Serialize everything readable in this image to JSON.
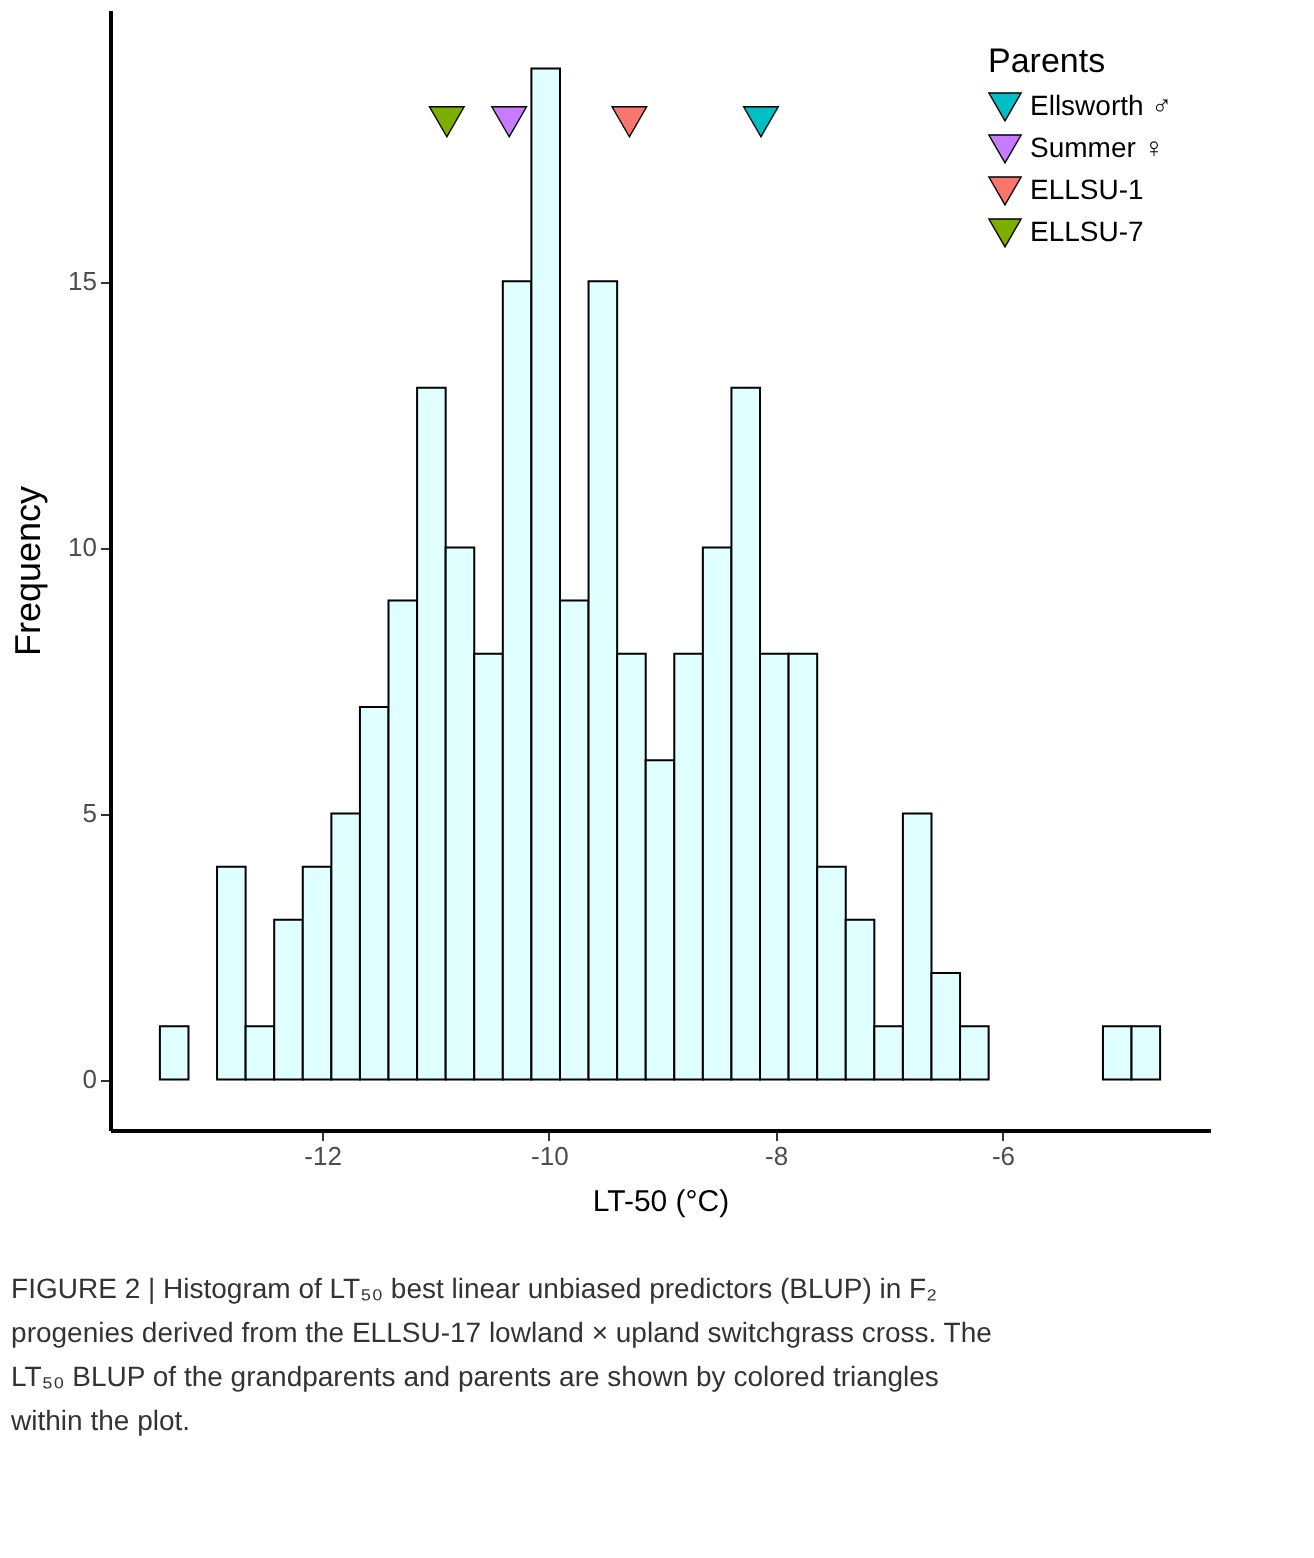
{
  "chart_data": {
    "type": "histogram",
    "xlabel": "LT-50 (°C)",
    "ylabel": "Frequency",
    "legend_title": "Parents",
    "legend": "top right",
    "grid": false,
    "marker": "triangle",
    "color": "#e0ffff",
    "bins": [
      -13.43,
      -13.178,
      -12.926,
      -12.674,
      -12.422,
      -12.17,
      -11.918,
      -11.666,
      -11.414,
      -11.162,
      -10.91,
      -10.658,
      -10.406,
      -10.154,
      -9.902,
      -9.65,
      -9.398,
      -9.146,
      -8.894,
      -8.642,
      -8.39,
      -8.138,
      -7.886,
      -7.634,
      -7.382,
      -7.13,
      -6.878,
      -6.626,
      -6.374,
      -6.122,
      -5.87,
      -5.618,
      -5.366,
      -5.114,
      -4.862,
      -4.61
    ],
    "values": [
      1,
      0,
      4,
      1,
      3,
      4,
      5,
      7,
      9,
      13,
      10,
      8,
      15,
      19,
      9,
      15,
      8,
      6,
      8,
      10,
      13,
      8,
      8,
      4,
      3,
      1,
      5,
      2,
      1,
      0,
      0,
      0,
      0,
      1,
      1
    ],
    "series": [
      {
        "name": "Ellsworth ♂",
        "type": "scatter",
        "color": "#00bfc4",
        "x": [
          -8.13
        ],
        "values": [
          18
        ]
      },
      {
        "name": "Summer ♀",
        "type": "scatter",
        "color": "#c77cff",
        "x": [
          -10.35
        ],
        "values": [
          18
        ]
      },
      {
        "name": "ELLSU-1",
        "type": "scatter",
        "color": "#f8766d",
        "x": [
          -9.29
        ],
        "values": [
          18
        ]
      },
      {
        "name": "ELLSU-7",
        "type": "scatter",
        "color": "#7cae00",
        "x": [
          -10.9
        ],
        "values": [
          18
        ]
      }
    ],
    "xlim": [
      -13.87,
      -4.17
    ],
    "ylim": [
      -0.95,
      20.1
    ],
    "xticks": [
      -12,
      -10,
      -8,
      -6
    ],
    "yticks": [
      0,
      5,
      10,
      15
    ],
    "annotations": [
      "FIGURE 2 | Histogram of LT₅₀ best linear unbiased predictors (BLUP) in F₂ progenies derived from the ELLSU-17 lowland × upland switchgrass cross. The LT₅₀ BLUP of the grandparents and parents are shown by colored triangles within the plot."
    ]
  }
}
